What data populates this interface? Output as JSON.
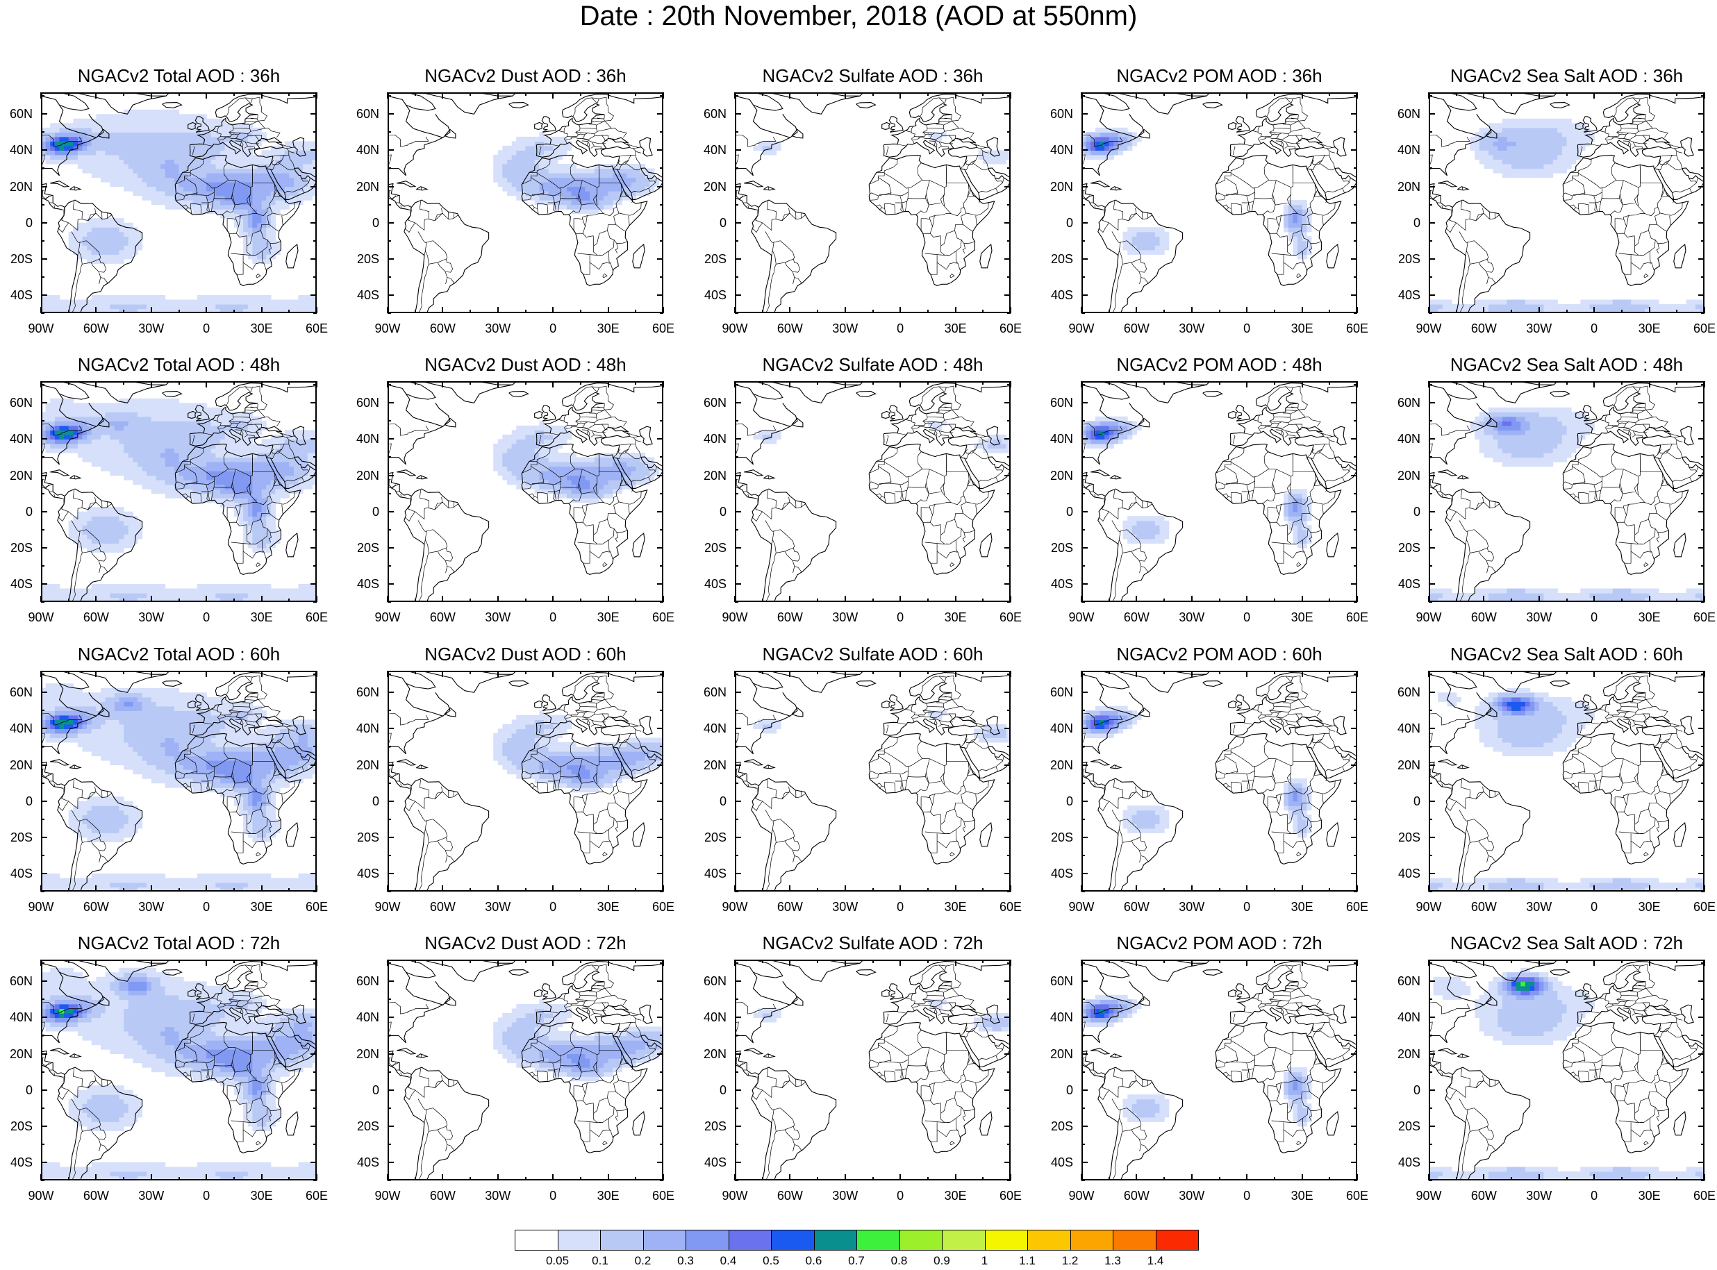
{
  "title": "Date : 20th November, 2018 (AOD at 550nm)",
  "lat_labels": [
    "60N",
    "40N",
    "20N",
    "0",
    "20S",
    "40S"
  ],
  "lon_labels": [
    "90W",
    "60W",
    "30W",
    "0",
    "30E",
    "60E"
  ],
  "map_extent": {
    "lon": [
      -90,
      60
    ],
    "lat": [
      -50,
      72
    ]
  },
  "panels": [
    {
      "title": "NGACv2 Total AOD : 36h",
      "species": "total",
      "hour": 36
    },
    {
      "title": "NGACv2 Dust AOD : 36h",
      "species": "dust",
      "hour": 36
    },
    {
      "title": "NGACv2 Sulfate AOD : 36h",
      "species": "sulfate",
      "hour": 36
    },
    {
      "title": "NGACv2 POM AOD : 36h",
      "species": "pom",
      "hour": 36
    },
    {
      "title": "NGACv2 Sea Salt AOD : 36h",
      "species": "seasalt",
      "hour": 36
    },
    {
      "title": "NGACv2 Total AOD : 48h",
      "species": "total",
      "hour": 48
    },
    {
      "title": "NGACv2 Dust AOD : 48h",
      "species": "dust",
      "hour": 48
    },
    {
      "title": "NGACv2 Sulfate AOD : 48h",
      "species": "sulfate",
      "hour": 48
    },
    {
      "title": "NGACv2 POM AOD : 48h",
      "species": "pom",
      "hour": 48
    },
    {
      "title": "NGACv2 Sea Salt AOD : 48h",
      "species": "seasalt",
      "hour": 48
    },
    {
      "title": "NGACv2 Total AOD : 60h",
      "species": "total",
      "hour": 60
    },
    {
      "title": "NGACv2 Dust AOD : 60h",
      "species": "dust",
      "hour": 60
    },
    {
      "title": "NGACv2 Sulfate AOD : 60h",
      "species": "sulfate",
      "hour": 60
    },
    {
      "title": "NGACv2 POM AOD : 60h",
      "species": "pom",
      "hour": 60
    },
    {
      "title": "NGACv2 Sea Salt AOD : 60h",
      "species": "seasalt",
      "hour": 60
    },
    {
      "title": "NGACv2 Total AOD : 72h",
      "species": "total",
      "hour": 72
    },
    {
      "title": "NGACv2 Dust AOD : 72h",
      "species": "dust",
      "hour": 72
    },
    {
      "title": "NGACv2 Sulfate AOD : 72h",
      "species": "sulfate",
      "hour": 72
    },
    {
      "title": "NGACv2 POM AOD : 72h",
      "species": "pom",
      "hour": 72
    },
    {
      "title": "NGACv2 Sea Salt  AOD : 72h",
      "species": "seasalt",
      "hour": 72
    }
  ],
  "colorbar": {
    "labels": [
      "0.05",
      "0.1",
      "0.2",
      "0.3",
      "0.4",
      "0.5",
      "0.6",
      "0.7",
      "0.8",
      "0.9",
      "1",
      "1.1",
      "1.2",
      "1.3",
      "1.4"
    ],
    "colors": [
      "#ffffff",
      "#d6e0fb",
      "#b9c9f6",
      "#9eb2f5",
      "#8199f2",
      "#6a72ee",
      "#1a5af0",
      "#0a8f8f",
      "#3cf03c",
      "#9bf02b",
      "#c3f046",
      "#f5f500",
      "#fcc700",
      "#fca400",
      "#fb7a00",
      "#fb2a00"
    ]
  }
}
